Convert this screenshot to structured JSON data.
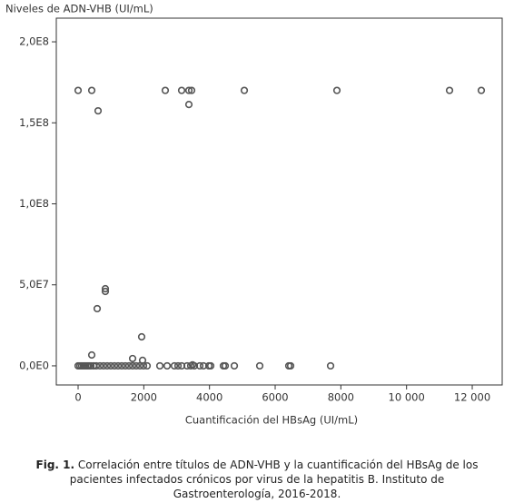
{
  "chart_data": {
    "type": "scatter",
    "y_label": "Niveles de ADN-VHB (UI/mL)",
    "x_label": "Cuantificación del HBsAg (UI/mL)",
    "x": [
      0,
      415,
      2654,
      3152,
      3373,
      3456,
      5060,
      7880,
      11309,
      12276,
      608,
      3373,
      829,
      829,
      581,
      1935,
      415,
      1659,
      1963,
      3484,
      0,
      55,
      110,
      166,
      221,
      277,
      332,
      387,
      470,
      553,
      664,
      774,
      885,
      995,
      1106,
      1217,
      1327,
      1438,
      1548,
      1659,
      1770,
      1880,
      1991,
      2101,
      2489,
      2710,
      2931,
      3042,
      3152,
      3318,
      3429,
      3539,
      3705,
      3816,
      3982,
      4037,
      4424,
      4479,
      4756,
      5530,
      6415,
      6470,
      7687
    ],
    "values": [
      170000000,
      170000000,
      170000000,
      170000000,
      170000000,
      170000000,
      170000000,
      170000000,
      170000000,
      170000000,
      157400000,
      161300000,
      47600000,
      45900000,
      35300000,
      17900000,
      6700000,
      4500000,
      3400000,
      600000,
      0,
      0,
      0,
      0,
      0,
      0,
      0,
      0,
      0,
      0,
      0,
      0,
      0,
      0,
      0,
      0,
      0,
      0,
      0,
      0,
      0,
      0,
      0,
      0,
      0,
      0,
      0,
      0,
      0,
      0,
      0,
      0,
      0,
      0,
      0,
      0,
      0,
      0,
      0,
      0,
      0,
      0,
      0
    ],
    "color": "#555555",
    "xlim": [
      -664,
      12912
    ],
    "ylim": [
      -11800000,
      214600000
    ],
    "xticks": [
      0,
      2000,
      4000,
      6000,
      8000,
      {
        "value": 10000,
        "label": "10 000"
      },
      {
        "value": 12000,
        "label": "12 000"
      }
    ],
    "yticks": [
      {
        "value": 0,
        "label": "0,0E0"
      },
      {
        "value": 50000000,
        "label": "5,0E7"
      },
      {
        "value": 100000000,
        "label": "1,0E8"
      },
      {
        "value": 150000000,
        "label": "1,5E8"
      },
      {
        "value": 200000000,
        "label": "2,0E8"
      }
    ],
    "grid": false
  },
  "caption": {
    "label": "Fig. 1.",
    "text": "Correlación entre títulos de ADN-VHB y la cuantificación del HBsAg de los pacientes infectados crónicos por virus de la hepatitis B. Instituto de Gastroenterología, 2016-2018."
  }
}
